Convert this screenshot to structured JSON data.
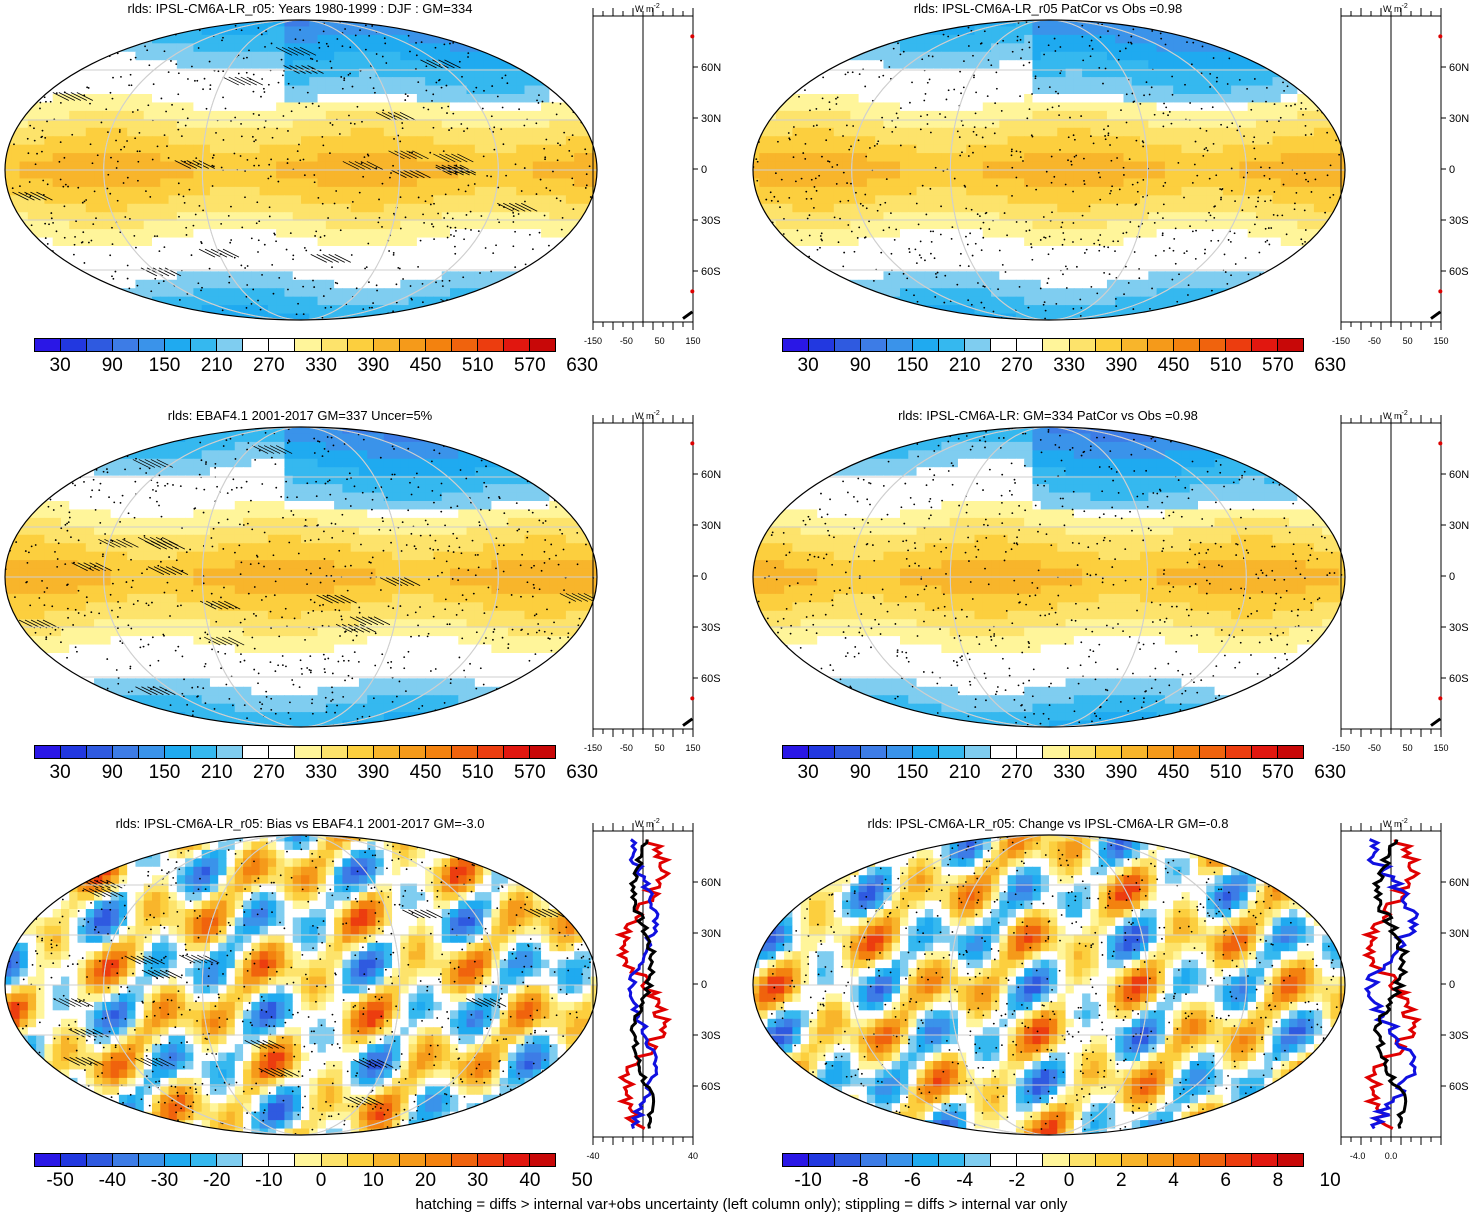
{
  "footer": "hatching = diffs > internal var+obs uncertainty (left column only); stippling = diffs > internal var only",
  "units_label": "W m",
  "units_exp": "-2",
  "lat_labels": [
    "60N",
    "30N",
    "0",
    "30S",
    "60S"
  ],
  "lat_values": [
    60,
    30,
    0,
    -30,
    -60
  ],
  "palettes": {
    "abs": [
      "#2a17e6",
      "#2238e0",
      "#2f5ae0",
      "#3d7ce6",
      "#3a93ea",
      "#1faaf0",
      "#35b8ef",
      "#7fcdf0",
      "#ffffff",
      "#ffffff",
      "#fff59a",
      "#fde36b",
      "#fccf3e",
      "#f8b52b",
      "#f59a1a",
      "#f3820f",
      "#f0630d",
      "#ec3d0f",
      "#e1170f",
      "#c80808"
    ],
    "diff": [
      "#2a17e6",
      "#2238e0",
      "#2f5ae0",
      "#3d7ce6",
      "#3a93ea",
      "#1faaf0",
      "#35b8ef",
      "#7fcdf0",
      "#ffffff",
      "#ffffff",
      "#fff59a",
      "#fde36b",
      "#fccf3e",
      "#f8b52b",
      "#f59a1a",
      "#f3820f",
      "#f0630d",
      "#ec3d0f",
      "#e1170f",
      "#c80808"
    ]
  },
  "panels": [
    {
      "title": "rlds: IPSL-CM6A-LR_r05: Years 1980-1999 : DJF : GM=334",
      "kind": "abs",
      "hatch": true,
      "cbar_labels": [
        "30",
        "90",
        "150",
        "210",
        "270",
        "330",
        "390",
        "450",
        "510",
        "570",
        "630"
      ],
      "profile_ticks": [
        "-150",
        "-50",
        "50",
        "150"
      ],
      "profile_range": [
        -150,
        150
      ],
      "profile_tick_vals": [
        -150,
        -50,
        50,
        150
      ]
    },
    {
      "title": "rlds: IPSL-CM6A-LR_r05 PatCor vs Obs =0.98",
      "kind": "abs",
      "hatch": false,
      "cbar_labels": [
        "30",
        "90",
        "150",
        "210",
        "270",
        "330",
        "390",
        "450",
        "510",
        "570",
        "630"
      ],
      "profile_ticks": [
        "-150",
        "-50",
        "50",
        "150"
      ],
      "profile_range": [
        -150,
        150
      ],
      "profile_tick_vals": [
        -150,
        -50,
        50,
        150
      ]
    },
    {
      "title": "rlds: EBAF4.1 2001-2017 GM=337 Uncer=5%",
      "kind": "abs",
      "hatch": true,
      "cbar_labels": [
        "30",
        "90",
        "150",
        "210",
        "270",
        "330",
        "390",
        "450",
        "510",
        "570",
        "630"
      ],
      "profile_ticks": [
        "-150",
        "-50",
        "50",
        "150"
      ],
      "profile_range": [
        -150,
        150
      ],
      "profile_tick_vals": [
        -150,
        -50,
        50,
        150
      ]
    },
    {
      "title": "rlds: IPSL-CM6A-LR: GM=334 PatCor vs Obs =0.98",
      "kind": "abs",
      "hatch": false,
      "cbar_labels": [
        "30",
        "90",
        "150",
        "210",
        "270",
        "330",
        "390",
        "450",
        "510",
        "570",
        "630"
      ],
      "profile_ticks": [
        "-150",
        "-50",
        "50",
        "150"
      ],
      "profile_range": [
        -150,
        150
      ],
      "profile_tick_vals": [
        -150,
        -50,
        50,
        150
      ]
    },
    {
      "title": "rlds: IPSL-CM6A-LR_r05: Bias vs EBAF4.1 2001-2017 GM=-3.0",
      "kind": "bias",
      "hatch": true,
      "cbar_labels": [
        "-50",
        "-40",
        "-30",
        "-20",
        "-10",
        "0",
        "10",
        "20",
        "30",
        "40",
        "50"
      ],
      "profile_ticks": [
        "-40",
        "40"
      ],
      "profile_range": [
        -40,
        40
      ],
      "profile_tick_vals": [
        -40,
        40
      ]
    },
    {
      "title": "rlds: IPSL-CM6A-LR_r05: Change vs IPSL-CM6A-LR GM=-0.8",
      "kind": "change",
      "hatch": false,
      "cbar_labels": [
        "-10",
        "-8",
        "-6",
        "-4",
        "-2",
        "0",
        "2",
        "4",
        "6",
        "8",
        "10"
      ],
      "profile_ticks": [
        "-4.0",
        "0.0"
      ],
      "profile_range": [
        -6,
        6
      ],
      "profile_tick_vals": [
        -4,
        0
      ]
    }
  ]
}
